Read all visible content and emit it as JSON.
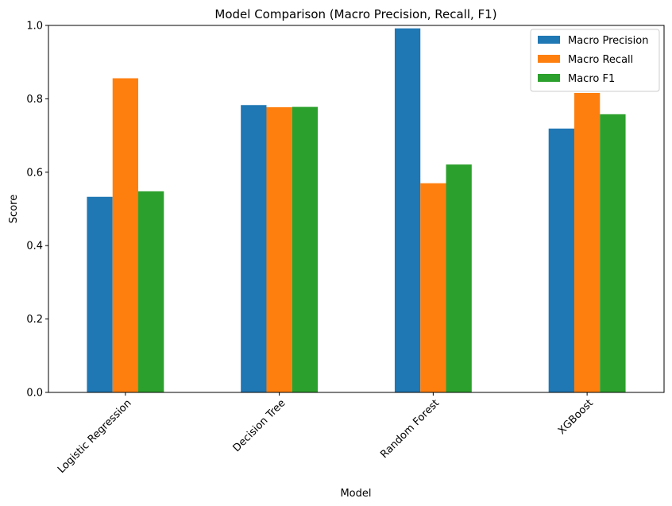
{
  "chart_data": {
    "type": "bar",
    "title": "Model Comparison (Macro Precision, Recall, F1)",
    "xlabel": "Model",
    "ylabel": "Score",
    "ylim": [
      0,
      1.0
    ],
    "yticks": [
      0.0,
      0.2,
      0.4,
      0.6,
      0.8,
      1.0
    ],
    "ytick_labels": [
      "0.0",
      "0.2",
      "0.4",
      "0.6",
      "0.8",
      "1.0"
    ],
    "categories": [
      "Logistic Regression",
      "Decision Tree",
      "Random Forest",
      "XGBoost"
    ],
    "series": [
      {
        "name": "Macro Precision",
        "color": "#1f77b4",
        "values": [
          0.533,
          0.783,
          0.992,
          0.719
        ]
      },
      {
        "name": "Macro Recall",
        "color": "#ff7f0e",
        "values": [
          0.856,
          0.777,
          0.57,
          0.816
        ]
      },
      {
        "name": "Macro F1",
        "color": "#2ca02c",
        "values": [
          0.548,
          0.778,
          0.621,
          0.758
        ]
      }
    ],
    "legend_position": "top-right",
    "grid": false
  }
}
